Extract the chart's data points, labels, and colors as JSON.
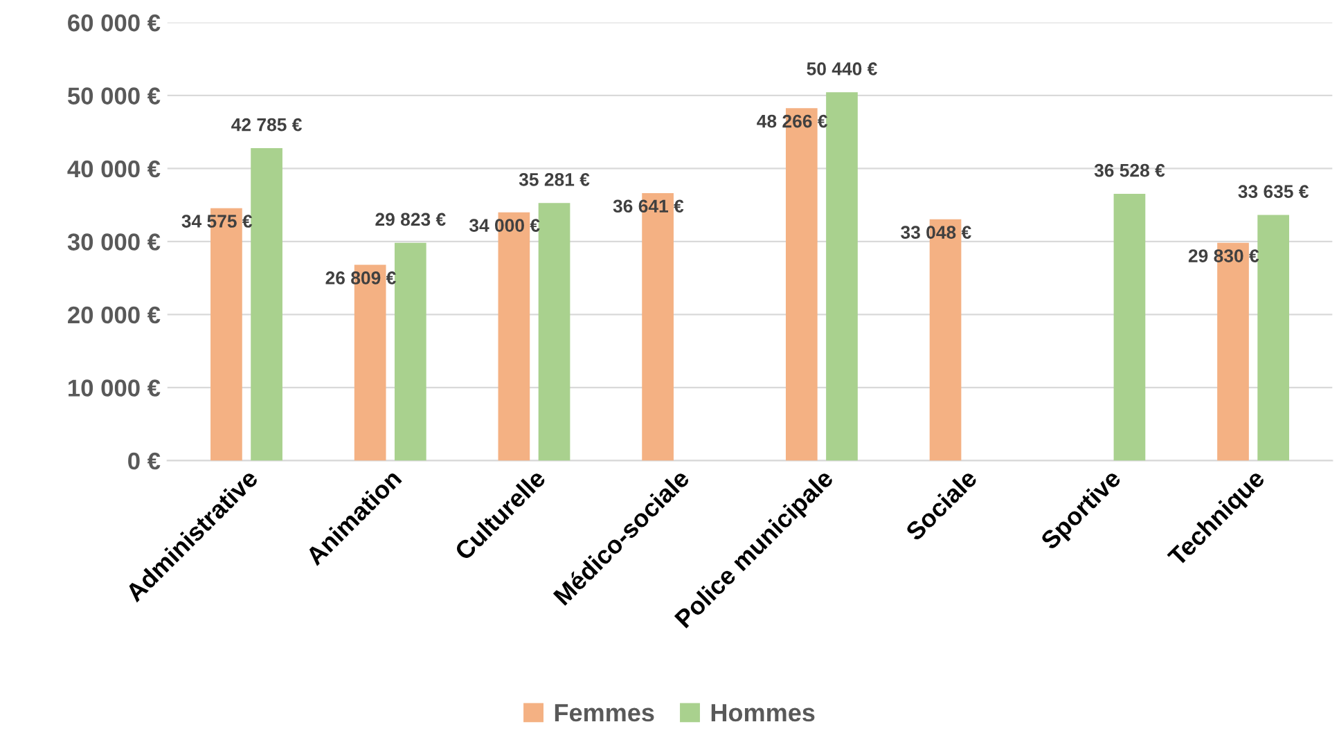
{
  "chart_data": {
    "type": "bar",
    "categories": [
      "Administrative",
      "Animation",
      "Culturelle",
      "Médico-sociale",
      "Police municipale",
      "Sociale",
      "Sportive",
      "Technique"
    ],
    "series": [
      {
        "name": "Femmes",
        "color": "#f4b183",
        "values": [
          34575,
          26809,
          34000,
          36641,
          48266,
          33048,
          null,
          29830
        ],
        "value_labels": [
          "34 575 €",
          "26 809 €",
          "34 000 €",
          "36 641 €",
          "48 266 €",
          "33 048 €",
          null,
          "29 830 €"
        ]
      },
      {
        "name": "Hommes",
        "color": "#a9d18e",
        "values": [
          42785,
          29823,
          35281,
          null,
          50440,
          null,
          36528,
          33635
        ],
        "value_labels": [
          "42 785 €",
          "29 823 €",
          "35 281 €",
          null,
          "50 440 €",
          null,
          "36 528 €",
          "33 635 €"
        ]
      }
    ],
    "ylim": [
      0,
      60000
    ],
    "yticks": [
      {
        "value": 0,
        "label": "0 €"
      },
      {
        "value": 10000,
        "label": "10 000 €"
      },
      {
        "value": 20000,
        "label": "20 000 €"
      },
      {
        "value": 30000,
        "label": "30 000 €"
      },
      {
        "value": 40000,
        "label": "40 000 €"
      },
      {
        "value": 50000,
        "label": "50 000 €"
      },
      {
        "value": 60000,
        "label": "60 000 €"
      }
    ],
    "grid": "y",
    "legend": "bottom"
  }
}
